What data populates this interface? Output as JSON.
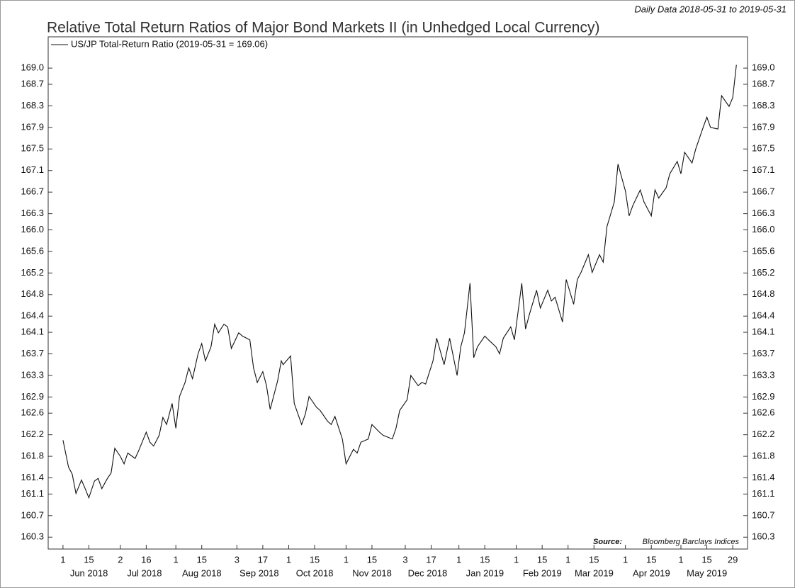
{
  "chart_data": {
    "type": "line",
    "date_range": "Daily Data 2018-05-31 to 2019-05-31",
    "title": "Relative Total Return Ratios of Major Bond Markets II (in Unhedged Local Currency)",
    "source_label": "Source:",
    "source": "Bloomberg Barclays Indices",
    "series": [
      {
        "name": "US/JP Total-Return Ratio (2019-05-31 = 169.06)",
        "color": "#111111",
        "x": [
          "2018-06-01",
          "2018-06-04",
          "2018-06-06",
          "2018-06-08",
          "2018-06-11",
          "2018-06-13",
          "2018-06-15",
          "2018-06-18",
          "2018-06-20",
          "2018-06-22",
          "2018-06-25",
          "2018-06-27",
          "2018-06-29",
          "2018-07-02",
          "2018-07-04",
          "2018-07-06",
          "2018-07-10",
          "2018-07-12",
          "2018-07-16",
          "2018-07-18",
          "2018-07-20",
          "2018-07-23",
          "2018-07-25",
          "2018-07-27",
          "2018-07-30",
          "2018-08-01",
          "2018-08-03",
          "2018-08-06",
          "2018-08-08",
          "2018-08-10",
          "2018-08-13",
          "2018-08-15",
          "2018-08-17",
          "2018-08-20",
          "2018-08-22",
          "2018-08-24",
          "2018-08-27",
          "2018-08-29",
          "2018-08-31",
          "2018-09-04",
          "2018-09-06",
          "2018-09-10",
          "2018-09-12",
          "2018-09-14",
          "2018-09-17",
          "2018-09-19",
          "2018-09-21",
          "2018-09-25",
          "2018-09-27",
          "2018-09-28",
          "2018-10-02",
          "2018-10-04",
          "2018-10-08",
          "2018-10-10",
          "2018-10-12",
          "2018-10-16",
          "2018-10-18",
          "2018-10-22",
          "2018-10-24",
          "2018-10-26",
          "2018-10-30",
          "2018-11-01",
          "2018-11-05",
          "2018-11-07",
          "2018-11-09",
          "2018-11-13",
          "2018-11-15",
          "2018-11-19",
          "2018-11-21",
          "2018-11-26",
          "2018-11-28",
          "2018-11-30",
          "2018-12-04",
          "2018-12-06",
          "2018-12-10",
          "2018-12-12",
          "2018-12-14",
          "2018-12-18",
          "2018-12-20",
          "2018-12-24",
          "2018-12-27",
          "2018-12-31",
          "2019-01-02",
          "2019-01-04",
          "2019-01-07",
          "2019-01-09",
          "2019-01-11",
          "2019-01-15",
          "2019-01-17",
          "2019-01-21",
          "2019-01-23",
          "2019-01-25",
          "2019-01-29",
          "2019-01-31",
          "2019-02-04",
          "2019-02-06",
          "2019-02-08",
          "2019-02-12",
          "2019-02-14",
          "2019-02-18",
          "2019-02-20",
          "2019-02-22",
          "2019-02-26",
          "2019-02-28",
          "2019-03-04",
          "2019-03-06",
          "2019-03-08",
          "2019-03-12",
          "2019-03-14",
          "2019-03-18",
          "2019-03-20",
          "2019-03-22",
          "2019-03-26",
          "2019-03-28",
          "2019-04-01",
          "2019-04-03",
          "2019-04-05",
          "2019-04-09",
          "2019-04-11",
          "2019-04-15",
          "2019-04-17",
          "2019-04-19",
          "2019-04-23",
          "2019-04-25",
          "2019-04-29",
          "2019-05-01",
          "2019-05-03",
          "2019-05-07",
          "2019-05-09",
          "2019-05-13",
          "2019-05-15",
          "2019-05-17",
          "2019-05-21",
          "2019-05-23",
          "2019-05-27",
          "2019-05-29",
          "2019-05-31"
        ],
        "values": [
          162.1,
          161.6,
          161.47,
          161.11,
          161.36,
          161.2,
          161.03,
          161.34,
          161.39,
          161.2,
          161.39,
          161.49,
          161.95,
          161.8,
          161.66,
          161.86,
          161.76,
          161.91,
          162.25,
          162.06,
          161.99,
          162.19,
          162.52,
          162.39,
          162.78,
          162.32,
          162.91,
          163.17,
          163.44,
          163.24,
          163.7,
          163.89,
          163.57,
          163.83,
          164.25,
          164.09,
          164.25,
          164.2,
          163.8,
          164.09,
          164.03,
          163.96,
          163.44,
          163.17,
          163.37,
          163.11,
          162.67,
          163.2,
          163.57,
          163.5,
          163.66,
          162.78,
          162.39,
          162.58,
          162.91,
          162.71,
          162.65,
          162.45,
          162.39,
          162.54,
          162.12,
          161.66,
          161.93,
          161.86,
          162.06,
          162.12,
          162.39,
          162.25,
          162.19,
          162.12,
          162.32,
          162.65,
          162.85,
          163.3,
          163.11,
          163.17,
          163.14,
          163.57,
          163.99,
          163.5,
          163.99,
          163.3,
          163.83,
          164.09,
          165.01,
          163.63,
          163.83,
          164.03,
          163.96,
          163.83,
          163.7,
          163.99,
          164.2,
          163.96,
          165.01,
          164.16,
          164.42,
          164.88,
          164.55,
          164.88,
          164.68,
          164.75,
          164.29,
          165.08,
          164.62,
          165.08,
          165.21,
          165.54,
          165.21,
          165.54,
          165.4,
          166.06,
          166.52,
          167.22,
          166.72,
          166.26,
          166.45,
          166.74,
          166.52,
          166.26,
          166.74,
          166.59,
          166.78,
          167.04,
          167.27,
          167.04,
          167.44,
          167.24,
          167.5,
          167.9,
          168.09,
          167.9,
          167.87,
          168.49,
          168.29,
          168.45,
          169.06
        ]
      }
    ],
    "ylim": [
      160.08,
      169.58
    ],
    "yticks": [
      160.3,
      160.7,
      161.1,
      161.4,
      161.8,
      162.2,
      162.6,
      162.9,
      163.3,
      163.7,
      164.1,
      164.4,
      164.8,
      165.2,
      165.6,
      {
        "value": 166,
        "label": "166.0"
      },
      166.3,
      166.7,
      167.1,
      167.5,
      167.9,
      168.3,
      168.7,
      {
        "value": 169,
        "label": "169.0"
      }
    ],
    "xlim": [
      "2018-05-24",
      "2019-06-06"
    ],
    "xticks": [
      {
        "value": "2018-06-01",
        "label": "1"
      },
      {
        "value": "2018-06-15",
        "label": "15"
      },
      {
        "value": "2018-07-02",
        "label": "2"
      },
      {
        "value": "2018-07-16",
        "label": "16"
      },
      {
        "value": "2018-08-01",
        "label": "1"
      },
      {
        "value": "2018-08-15",
        "label": "15"
      },
      {
        "value": "2018-09-03",
        "label": "3"
      },
      {
        "value": "2018-09-17",
        "label": "17"
      },
      {
        "value": "2018-10-01",
        "label": "1"
      },
      {
        "value": "2018-10-15",
        "label": "15"
      },
      {
        "value": "2018-11-01",
        "label": "1"
      },
      {
        "value": "2018-11-15",
        "label": "15"
      },
      {
        "value": "2018-12-03",
        "label": "3"
      },
      {
        "value": "2018-12-17",
        "label": "17"
      },
      {
        "value": "2019-01-01",
        "label": "1"
      },
      {
        "value": "2019-01-15",
        "label": "15"
      },
      {
        "value": "2019-02-01",
        "label": "1"
      },
      {
        "value": "2019-02-15",
        "label": "15"
      },
      {
        "value": "2019-03-01",
        "label": "1"
      },
      {
        "value": "2019-03-15",
        "label": "15"
      },
      {
        "value": "2019-04-01",
        "label": "1"
      },
      {
        "value": "2019-04-15",
        "label": "15"
      },
      {
        "value": "2019-05-01",
        "label": "1"
      },
      {
        "value": "2019-05-15",
        "label": "15"
      },
      {
        "value": "2019-05-29",
        "label": "29"
      }
    ],
    "month_labels": [
      {
        "value": "2018-06-01",
        "label": "Jun 2018"
      },
      {
        "value": "2018-07-01",
        "label": "Jul 2018"
      },
      {
        "value": "2018-08-01",
        "label": "Aug 2018"
      },
      {
        "value": "2018-09-01",
        "label": "Sep 2018"
      },
      {
        "value": "2018-10-01",
        "label": "Oct 2018"
      },
      {
        "value": "2018-11-01",
        "label": "Nov 2018"
      },
      {
        "value": "2018-12-01",
        "label": "Dec 2018"
      },
      {
        "value": "2019-01-01",
        "label": "Jan 2019"
      },
      {
        "value": "2019-02-01",
        "label": "Feb 2019"
      },
      {
        "value": "2019-03-01",
        "label": "Mar 2019"
      },
      {
        "value": "2019-04-01",
        "label": "Apr 2019"
      },
      {
        "value": "2019-05-01",
        "label": "May 2019"
      }
    ],
    "grid": false
  }
}
